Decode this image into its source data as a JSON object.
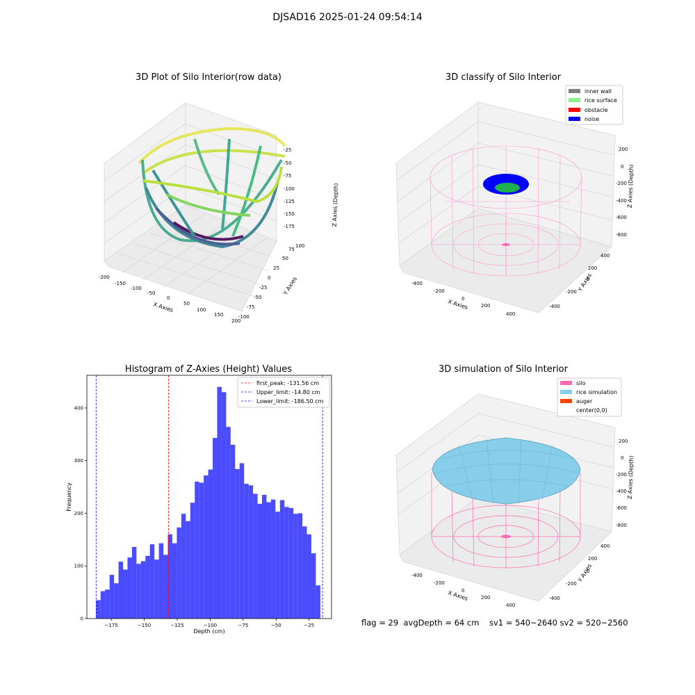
{
  "figure": {
    "suptitle": "DJSAD16 2025-01-24 09:54:14"
  },
  "panels": {
    "raw": {
      "title": "3D Plot of Silo Interior(row data)",
      "xlabel": "X Axies",
      "ylabel": "Y Axies",
      "zlabel": "Z Axies (Depth)",
      "xticks": [
        "-200",
        "-150",
        "-100",
        "-50",
        "0",
        "50",
        "100",
        "150",
        "200"
      ],
      "yticks": [
        "-100",
        "-75",
        "-50",
        "-25",
        "0",
        "25",
        "50",
        "75",
        "100"
      ],
      "zticks": [
        "-25",
        "-50",
        "-75",
        "-100",
        "-125",
        "-150",
        "-175"
      ]
    },
    "classify": {
      "title": "3D classify of Silo Interior",
      "xlabel": "X Axies",
      "ylabel": "Y Axies",
      "zlabel": "Z Axies (Depth)",
      "xticks": [
        "-400",
        "-200",
        "0",
        "200",
        "400"
      ],
      "yticks": [
        "-400",
        "-200",
        "0",
        "200",
        "400"
      ],
      "zticks": [
        "200",
        "0",
        "-200",
        "-400",
        "-600",
        "-800"
      ],
      "legend": [
        {
          "label": "inner wall",
          "color": "#808080"
        },
        {
          "label": "rice surface",
          "color": "#90ee90"
        },
        {
          "label": "obstacle",
          "color": "#ff0000"
        },
        {
          "label": "noise",
          "color": "#0000ff"
        }
      ]
    },
    "simulation": {
      "title": "3D simulation of Silo Interior",
      "xlabel": "X Axies",
      "ylabel": "Y Axies",
      "zlabel": "Z Axies (Depth)",
      "xticks": [
        "-400",
        "-200",
        "0",
        "200",
        "400"
      ],
      "yticks": [
        "-400",
        "-200",
        "0",
        "200",
        "400"
      ],
      "zticks": [
        "200",
        "0",
        "-200",
        "-400",
        "-600",
        "-800"
      ],
      "legend": [
        {
          "label": "silo",
          "color": "#ff69b4"
        },
        {
          "label": "rice simulation",
          "color": "#87ceeb"
        },
        {
          "label": "auger",
          "color": "#ff4500"
        },
        {
          "label": "center(0,0)",
          "color": "#ffffff"
        }
      ]
    }
  },
  "chart_data": {
    "type": "bar",
    "title": "Histogram of Z-Axies (Height) Values",
    "xlabel": "Depth (cm)",
    "ylabel": "Frequency",
    "xlim": [
      -193.5,
      -8
    ],
    "ylim": [
      0,
      462
    ],
    "xticks": [
      -175,
      -150,
      -125,
      -100,
      -75,
      -50,
      -25
    ],
    "yticks": [
      0,
      100,
      200,
      300,
      400
    ],
    "bin_start": -186.5,
    "bin_width": 3.4,
    "values": [
      35,
      52,
      55,
      83,
      67,
      108,
      93,
      116,
      136,
      104,
      109,
      119,
      141,
      112,
      143,
      121,
      160,
      143,
      173,
      199,
      185,
      220,
      260,
      258,
      272,
      283,
      343,
      440,
      430,
      364,
      330,
      284,
      295,
      256,
      253,
      237,
      218,
      235,
      221,
      226,
      203,
      225,
      212,
      210,
      199,
      200,
      175,
      160,
      124,
      63
    ],
    "vlines": [
      {
        "name": "first_peak: -131.56 cm",
        "x": -131.56,
        "color": "#ff0000"
      },
      {
        "name": "Upper_limit: -14.80 cm",
        "x": -14.8,
        "color": "#0000ff"
      },
      {
        "name": "Lower_limit: -186.50 cm",
        "x": -186.5,
        "color": "#0000ff"
      }
    ],
    "bar_color": "#4b4bff"
  },
  "footer": {
    "flag": "flag = 29",
    "avgdepth": "avgDepth = 64 cm",
    "sv1": "sv1 = 540~2640",
    "sv2": "sv2 = 520~2560"
  }
}
